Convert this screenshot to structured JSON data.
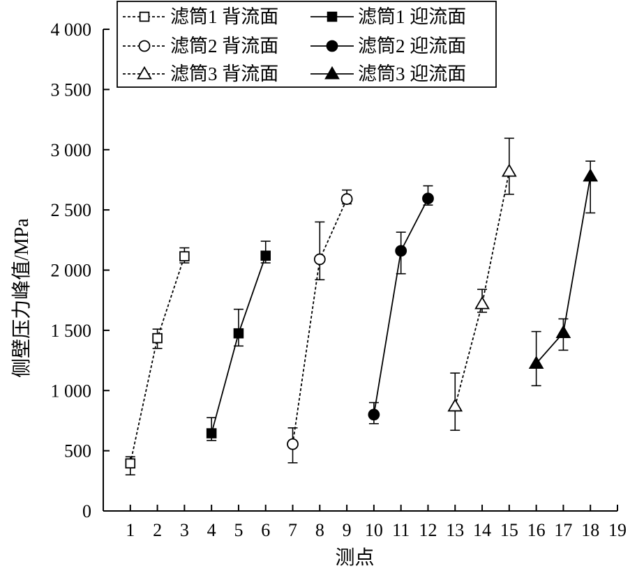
{
  "chart_data": {
    "type": "line",
    "xlabel": "测点",
    "ylabel": "侧壁压力峰值/MPa",
    "xlim": [
      0,
      19
    ],
    "ylim": [
      0,
      4000
    ],
    "x_ticks": [
      1,
      2,
      3,
      4,
      5,
      6,
      7,
      8,
      9,
      10,
      11,
      12,
      13,
      14,
      15,
      16,
      17,
      18,
      19
    ],
    "y_ticks": [
      0,
      500,
      1000,
      1500,
      2000,
      2500,
      3000,
      3500,
      4000
    ],
    "y_tick_labels": [
      "0",
      "500",
      "1 000",
      "1 500",
      "2 000",
      "2 500",
      "3 000",
      "3 500",
      "4 000"
    ],
    "grid": false,
    "legend_position": "top",
    "error_bars": true,
    "series": [
      {
        "name": "滤筒1 背流面",
        "marker": "square",
        "filled": false,
        "line": "dashed",
        "x": [
          1,
          2,
          3
        ],
        "y": [
          395,
          1435,
          2115
        ],
        "err_low": [
          300,
          1350,
          2060
        ],
        "err_high": [
          450,
          1510,
          2185
        ]
      },
      {
        "name": "滤筒1 迎流面",
        "marker": "square",
        "filled": true,
        "line": "solid",
        "x": [
          4,
          5,
          6
        ],
        "y": [
          645,
          1475,
          2120
        ],
        "err_low": [
          585,
          1370,
          2060
        ],
        "err_high": [
          775,
          1675,
          2240
        ]
      },
      {
        "name": "滤筒2 背流面",
        "marker": "circle",
        "filled": false,
        "line": "dashed",
        "x": [
          7,
          8,
          9
        ],
        "y": [
          555,
          2090,
          2590
        ],
        "err_low": [
          400,
          1920,
          2550
        ],
        "err_high": [
          690,
          2400,
          2665
        ]
      },
      {
        "name": "滤筒2 迎流面",
        "marker": "circle",
        "filled": true,
        "line": "solid",
        "x": [
          10,
          11,
          12
        ],
        "y": [
          800,
          2160,
          2595
        ],
        "err_low": [
          725,
          1970,
          2540
        ],
        "err_high": [
          900,
          2315,
          2700
        ]
      },
      {
        "name": "滤筒3 背流面",
        "marker": "triangle",
        "filled": false,
        "line": "dashed",
        "x": [
          13,
          14,
          15
        ],
        "y": [
          870,
          1720,
          2820
        ],
        "err_low": [
          670,
          1650,
          2630
        ],
        "err_high": [
          1145,
          1840,
          3095
        ]
      },
      {
        "name": "滤筒3 迎流面",
        "marker": "triangle",
        "filled": true,
        "line": "solid",
        "x": [
          16,
          17,
          18
        ],
        "y": [
          1225,
          1480,
          2780
        ],
        "err_low": [
          1040,
          1335,
          2475
        ],
        "err_high": [
          1490,
          1595,
          2905
        ]
      }
    ]
  }
}
